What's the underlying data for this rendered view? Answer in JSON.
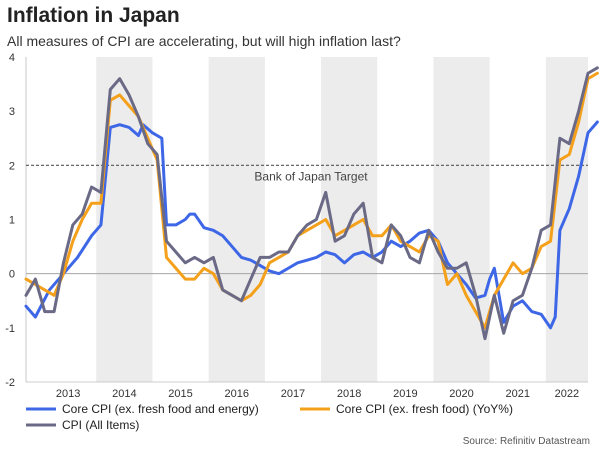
{
  "title": "Inflation in Japan",
  "subtitle": "All measures of CPI are accelerating, but will high inflation last?",
  "source": "Source: Refinitiv Datastream",
  "colors": {
    "core_core": "#3d67e6",
    "core": "#f5a01a",
    "cpi": "#6b6a86",
    "shade": "#ececec",
    "target": "#555555"
  },
  "chart_data": {
    "type": "line",
    "x_start": "2012-10",
    "x_end": "2022-09",
    "ylim": [
      -2,
      4
    ],
    "yticks": [
      -2,
      -1,
      0,
      1,
      2,
      3,
      4
    ],
    "xticks": [
      "2013",
      "2014",
      "2015",
      "2016",
      "2017",
      "2018",
      "2019",
      "2020",
      "2021",
      "2022"
    ],
    "shaded_years": [
      2014,
      2016,
      2018,
      2020,
      2022
    ],
    "reference_line": {
      "value": 2,
      "label": "Bank of Japan Target"
    },
    "legend_position": "bottom",
    "series": [
      {
        "name": "Core CPI (ex. fresh food and energy)",
        "color_key": "core_core",
        "points": [
          [
            "2012-10",
            -0.6
          ],
          [
            "2012-12",
            -0.8
          ],
          [
            "2013-03",
            -0.3
          ],
          [
            "2013-06",
            0.0
          ],
          [
            "2013-09",
            0.3
          ],
          [
            "2013-12",
            0.7
          ],
          [
            "2014-02",
            0.9
          ],
          [
            "2014-04",
            2.7
          ],
          [
            "2014-06",
            2.75
          ],
          [
            "2014-08",
            2.7
          ],
          [
            "2014-10",
            2.55
          ],
          [
            "2014-11",
            2.75
          ],
          [
            "2015-01",
            2.6
          ],
          [
            "2015-03",
            2.5
          ],
          [
            "2015-04",
            0.9
          ],
          [
            "2015-06",
            0.9
          ],
          [
            "2015-08",
            1.0
          ],
          [
            "2015-09",
            1.1
          ],
          [
            "2015-10",
            1.1
          ],
          [
            "2015-12",
            0.85
          ],
          [
            "2016-02",
            0.8
          ],
          [
            "2016-04",
            0.7
          ],
          [
            "2016-06",
            0.5
          ],
          [
            "2016-08",
            0.3
          ],
          [
            "2016-10",
            0.25
          ],
          [
            "2016-12",
            0.15
          ],
          [
            "2017-02",
            0.05
          ],
          [
            "2017-04",
            0.0
          ],
          [
            "2017-06",
            0.1
          ],
          [
            "2017-08",
            0.2
          ],
          [
            "2017-10",
            0.25
          ],
          [
            "2017-12",
            0.3
          ],
          [
            "2018-02",
            0.4
          ],
          [
            "2018-04",
            0.35
          ],
          [
            "2018-06",
            0.2
          ],
          [
            "2018-08",
            0.35
          ],
          [
            "2018-10",
            0.4
          ],
          [
            "2018-12",
            0.3
          ],
          [
            "2019-02",
            0.4
          ],
          [
            "2019-04",
            0.6
          ],
          [
            "2019-06",
            0.5
          ],
          [
            "2019-08",
            0.6
          ],
          [
            "2019-10",
            0.75
          ],
          [
            "2019-12",
            0.8
          ],
          [
            "2020-02",
            0.6
          ],
          [
            "2020-04",
            0.2
          ],
          [
            "2020-06",
            0.0
          ],
          [
            "2020-08",
            -0.2
          ],
          [
            "2020-10",
            -0.45
          ],
          [
            "2020-12",
            -0.4
          ],
          [
            "2021-01",
            -0.1
          ],
          [
            "2021-02",
            0.1
          ],
          [
            "2021-04",
            -0.9
          ],
          [
            "2021-06",
            -0.6
          ],
          [
            "2021-08",
            -0.5
          ],
          [
            "2021-10",
            -0.7
          ],
          [
            "2021-12",
            -0.75
          ],
          [
            "2022-02",
            -1.0
          ],
          [
            "2022-03",
            -0.8
          ],
          [
            "2022-04",
            0.8
          ],
          [
            "2022-06",
            1.2
          ],
          [
            "2022-08",
            1.8
          ],
          [
            "2022-10",
            2.6
          ],
          [
            "2022-12",
            2.8
          ]
        ]
      },
      {
        "name": "Core CPI (ex. fresh food) (YoY%)",
        "color_key": "core",
        "points": [
          [
            "2012-10",
            -0.1
          ],
          [
            "2012-12",
            -0.2
          ],
          [
            "2013-02",
            -0.3
          ],
          [
            "2013-04",
            -0.4
          ],
          [
            "2013-06",
            0.0
          ],
          [
            "2013-08",
            0.6
          ],
          [
            "2013-10",
            1.0
          ],
          [
            "2013-12",
            1.3
          ],
          [
            "2014-02",
            1.3
          ],
          [
            "2014-04",
            3.2
          ],
          [
            "2014-06",
            3.3
          ],
          [
            "2014-08",
            3.1
          ],
          [
            "2014-10",
            2.9
          ],
          [
            "2014-12",
            2.5
          ],
          [
            "2015-02",
            2.1
          ],
          [
            "2015-04",
            0.3
          ],
          [
            "2015-06",
            0.1
          ],
          [
            "2015-08",
            -0.1
          ],
          [
            "2015-10",
            -0.1
          ],
          [
            "2015-12",
            0.1
          ],
          [
            "2016-02",
            0.0
          ],
          [
            "2016-04",
            -0.3
          ],
          [
            "2016-06",
            -0.4
          ],
          [
            "2016-08",
            -0.5
          ],
          [
            "2016-10",
            -0.4
          ],
          [
            "2016-12",
            -0.2
          ],
          [
            "2017-02",
            0.2
          ],
          [
            "2017-04",
            0.3
          ],
          [
            "2017-06",
            0.4
          ],
          [
            "2017-08",
            0.7
          ],
          [
            "2017-10",
            0.8
          ],
          [
            "2017-12",
            0.9
          ],
          [
            "2018-02",
            1.0
          ],
          [
            "2018-04",
            0.7
          ],
          [
            "2018-06",
            0.8
          ],
          [
            "2018-08",
            0.9
          ],
          [
            "2018-10",
            1.0
          ],
          [
            "2018-12",
            0.7
          ],
          [
            "2019-02",
            0.7
          ],
          [
            "2019-04",
            0.9
          ],
          [
            "2019-06",
            0.6
          ],
          [
            "2019-08",
            0.5
          ],
          [
            "2019-10",
            0.4
          ],
          [
            "2019-12",
            0.7
          ],
          [
            "2020-02",
            0.6
          ],
          [
            "2020-04",
            -0.2
          ],
          [
            "2020-06",
            0.0
          ],
          [
            "2020-08",
            -0.4
          ],
          [
            "2020-10",
            -0.7
          ],
          [
            "2020-12",
            -1.0
          ],
          [
            "2021-02",
            -0.4
          ],
          [
            "2021-04",
            -0.1
          ],
          [
            "2021-06",
            0.2
          ],
          [
            "2021-08",
            0.0
          ],
          [
            "2021-10",
            0.1
          ],
          [
            "2021-12",
            0.5
          ],
          [
            "2022-02",
            0.6
          ],
          [
            "2022-04",
            2.1
          ],
          [
            "2022-06",
            2.2
          ],
          [
            "2022-08",
            2.8
          ],
          [
            "2022-10",
            3.6
          ],
          [
            "2022-12",
            3.7
          ]
        ]
      },
      {
        "name": "CPI (All Items)",
        "color_key": "cpi",
        "points": [
          [
            "2012-10",
            -0.4
          ],
          [
            "2012-12",
            -0.1
          ],
          [
            "2013-02",
            -0.7
          ],
          [
            "2013-04",
            -0.7
          ],
          [
            "2013-06",
            0.2
          ],
          [
            "2013-08",
            0.9
          ],
          [
            "2013-10",
            1.1
          ],
          [
            "2013-12",
            1.6
          ],
          [
            "2014-02",
            1.5
          ],
          [
            "2014-04",
            3.4
          ],
          [
            "2014-06",
            3.6
          ],
          [
            "2014-08",
            3.3
          ],
          [
            "2014-10",
            2.9
          ],
          [
            "2014-12",
            2.4
          ],
          [
            "2015-02",
            2.2
          ],
          [
            "2015-04",
            0.6
          ],
          [
            "2015-06",
            0.4
          ],
          [
            "2015-08",
            0.2
          ],
          [
            "2015-10",
            0.3
          ],
          [
            "2015-12",
            0.2
          ],
          [
            "2016-02",
            0.3
          ],
          [
            "2016-04",
            -0.3
          ],
          [
            "2016-06",
            -0.4
          ],
          [
            "2016-08",
            -0.5
          ],
          [
            "2016-10",
            -0.1
          ],
          [
            "2016-12",
            0.3
          ],
          [
            "2017-02",
            0.3
          ],
          [
            "2017-04",
            0.4
          ],
          [
            "2017-06",
            0.4
          ],
          [
            "2017-08",
            0.7
          ],
          [
            "2017-10",
            0.9
          ],
          [
            "2017-12",
            1.0
          ],
          [
            "2018-02",
            1.5
          ],
          [
            "2018-04",
            0.6
          ],
          [
            "2018-06",
            0.7
          ],
          [
            "2018-08",
            1.1
          ],
          [
            "2018-10",
            1.3
          ],
          [
            "2018-12",
            0.3
          ],
          [
            "2019-02",
            0.2
          ],
          [
            "2019-04",
            0.9
          ],
          [
            "2019-06",
            0.7
          ],
          [
            "2019-08",
            0.3
          ],
          [
            "2019-10",
            0.2
          ],
          [
            "2019-12",
            0.8
          ],
          [
            "2020-02",
            0.4
          ],
          [
            "2020-04",
            0.1
          ],
          [
            "2020-06",
            0.1
          ],
          [
            "2020-08",
            0.2
          ],
          [
            "2020-10",
            -0.4
          ],
          [
            "2020-12",
            -1.2
          ],
          [
            "2021-02",
            -0.4
          ],
          [
            "2021-04",
            -1.1
          ],
          [
            "2021-06",
            -0.5
          ],
          [
            "2021-08",
            -0.4
          ],
          [
            "2021-10",
            0.1
          ],
          [
            "2021-12",
            0.8
          ],
          [
            "2022-02",
            0.9
          ],
          [
            "2022-04",
            2.5
          ],
          [
            "2022-06",
            2.4
          ],
          [
            "2022-08",
            3.0
          ],
          [
            "2022-10",
            3.7
          ],
          [
            "2022-12",
            3.8
          ]
        ]
      }
    ]
  }
}
